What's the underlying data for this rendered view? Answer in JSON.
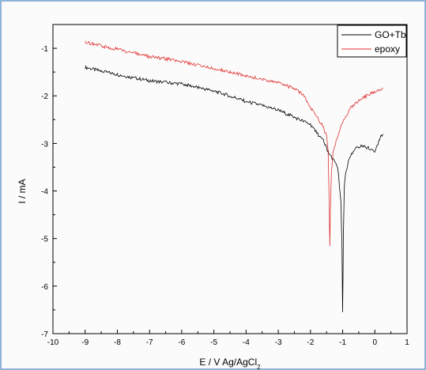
{
  "chart_data": {
    "type": "line",
    "title": "",
    "xlabel": "E / V Ag/AgCl",
    "xlabel_subscript": "2",
    "ylabel": "I / mA",
    "xlim": [
      -10,
      1
    ],
    "ylim": [
      -7,
      -0.5
    ],
    "x_ticks": [
      "-10",
      "-9",
      "-8",
      "-7",
      "-6",
      "-5",
      "-4",
      "-3",
      "-2",
      "-1",
      "0",
      "1"
    ],
    "y_ticks": [
      "-1",
      "-2",
      "-3",
      "-4",
      "-5",
      "-6",
      "-7"
    ],
    "grid": false,
    "legend_position": "top-right",
    "series": [
      {
        "name": "GO+Tb",
        "color": "#000000",
        "x": [
          -9.0,
          -8.5,
          -8.0,
          -7.5,
          -7.0,
          -6.5,
          -6.0,
          -5.5,
          -5.0,
          -4.5,
          -4.0,
          -3.5,
          -3.0,
          -2.5,
          -2.0,
          -1.8,
          -1.6,
          -1.5,
          -1.4,
          -1.3,
          -1.2,
          -1.15,
          -1.1,
          -1.05,
          -1.02,
          -1.0,
          -0.98,
          -0.95,
          -0.9,
          -0.8,
          -0.6,
          -0.4,
          -0.2,
          0.0,
          0.1,
          0.2,
          0.25
        ],
        "y": [
          -1.4,
          -1.48,
          -1.55,
          -1.62,
          -1.68,
          -1.72,
          -1.75,
          -1.82,
          -1.9,
          -2.0,
          -2.12,
          -2.2,
          -2.3,
          -2.45,
          -2.6,
          -2.78,
          -2.95,
          -3.1,
          -3.25,
          -3.35,
          -3.4,
          -3.5,
          -3.9,
          -4.3,
          -5.2,
          -6.55,
          -5.0,
          -3.9,
          -3.6,
          -3.3,
          -3.1,
          -3.05,
          -3.1,
          -3.15,
          -3.0,
          -2.85,
          -2.8
        ]
      },
      {
        "name": "epoxy",
        "color": "#e03030",
        "x": [
          -9.0,
          -8.5,
          -8.0,
          -7.5,
          -7.0,
          -6.5,
          -6.0,
          -5.5,
          -5.0,
          -4.5,
          -4.0,
          -3.5,
          -3.0,
          -2.5,
          -2.2,
          -2.0,
          -1.8,
          -1.6,
          -1.5,
          -1.45,
          -1.42,
          -1.4,
          -1.38,
          -1.35,
          -1.3,
          -1.2,
          -1.1,
          -1.0,
          -0.8,
          -0.6,
          -0.4,
          -0.2,
          0.0,
          0.1,
          0.2,
          0.25
        ],
        "y": [
          -0.87,
          -0.95,
          -1.02,
          -1.1,
          -1.18,
          -1.22,
          -1.28,
          -1.35,
          -1.42,
          -1.5,
          -1.58,
          -1.65,
          -1.72,
          -1.85,
          -2.0,
          -2.25,
          -2.45,
          -2.65,
          -2.85,
          -3.2,
          -4.2,
          -5.15,
          -4.4,
          -3.6,
          -3.2,
          -2.95,
          -2.75,
          -2.55,
          -2.3,
          -2.15,
          -2.05,
          -1.98,
          -1.92,
          -1.88,
          -1.85,
          -1.83
        ]
      }
    ]
  }
}
